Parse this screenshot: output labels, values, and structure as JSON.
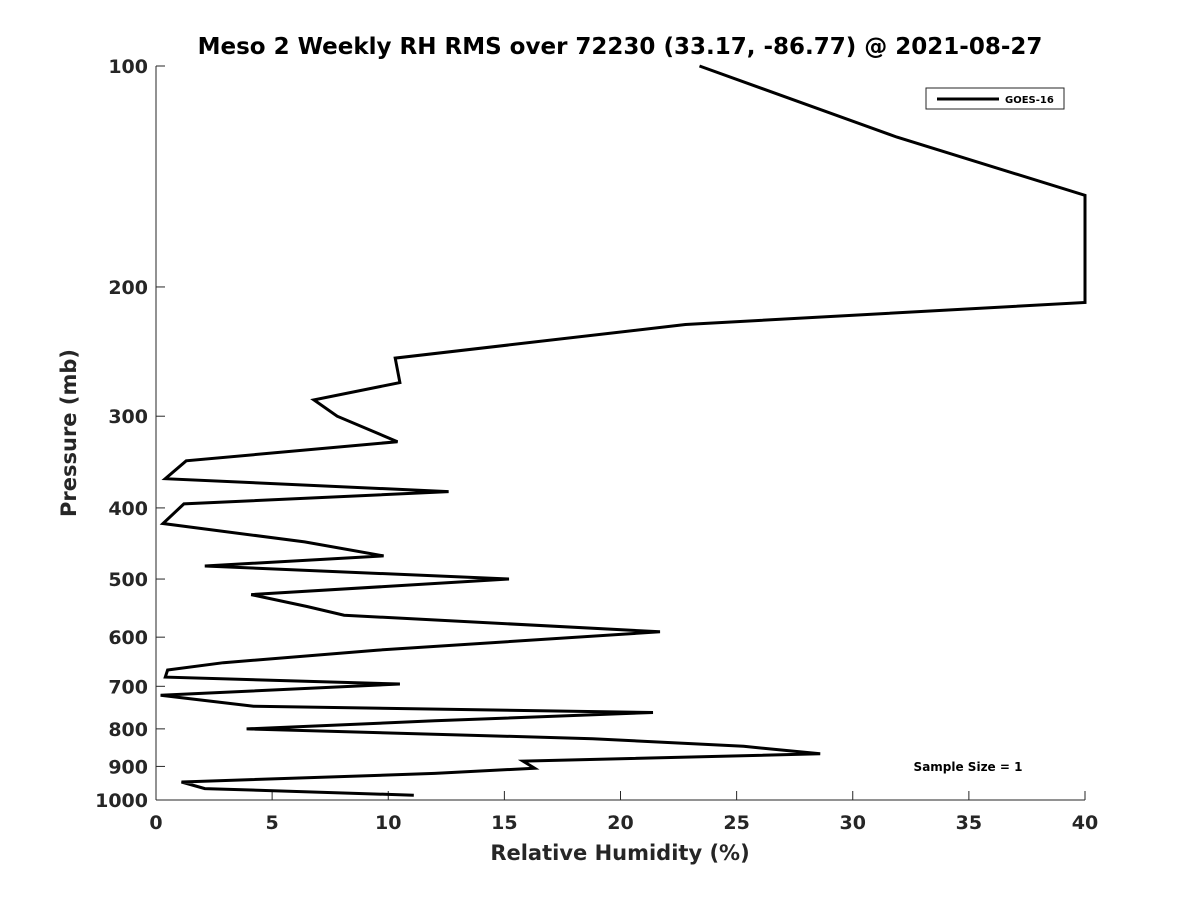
{
  "chart_data": {
    "type": "line",
    "title": "Meso 2 Weekly RH RMS over 72230 (33.17, -86.77) @ 2021-08-27",
    "xlabel": "Relative Humidity (%)",
    "ylabel": "Pressure (mb)",
    "xlim": [
      0,
      40
    ],
    "ylim": [
      100,
      1000
    ],
    "yscale": "log",
    "y_reversed": true,
    "xticks": [
      "0",
      "5",
      "10",
      "15",
      "20",
      "25",
      "30",
      "35",
      "40"
    ],
    "yticks": [
      "100",
      "200",
      "300",
      "400",
      "500",
      "600",
      "700",
      "800",
      "900",
      "1000"
    ],
    "grid": false,
    "legend": {
      "position": "top-right",
      "entries": [
        "GOES-16"
      ]
    },
    "annotation": "Sample Size = 1",
    "series": [
      {
        "name": "GOES-16",
        "color": "#000000",
        "points": [
          [
            23.4,
            100
          ],
          [
            31.9,
            125
          ],
          [
            40,
            150
          ],
          [
            40,
            210
          ],
          [
            22.8,
            225
          ],
          [
            10.3,
            250
          ],
          [
            10.5,
            270
          ],
          [
            6.8,
            285
          ],
          [
            7.8,
            300
          ],
          [
            10.4,
            325
          ],
          [
            1.3,
            345
          ],
          [
            0.4,
            365
          ],
          [
            12.6,
            380
          ],
          [
            1.2,
            395
          ],
          [
            0.3,
            420
          ],
          [
            6.4,
            445
          ],
          [
            9.8,
            465
          ],
          [
            2.1,
            480
          ],
          [
            15.2,
            500
          ],
          [
            4.1,
            525
          ],
          [
            6.5,
            545
          ],
          [
            8.1,
            560
          ],
          [
            21.7,
            590
          ],
          [
            9.5,
            625
          ],
          [
            2.9,
            650
          ],
          [
            0.5,
            665
          ],
          [
            0.4,
            680
          ],
          [
            10.5,
            695
          ],
          [
            0.2,
            720
          ],
          [
            4.2,
            745
          ],
          [
            21.4,
            760
          ],
          [
            12,
            780
          ],
          [
            3.9,
            800
          ],
          [
            18.8,
            825
          ],
          [
            25.3,
            845
          ],
          [
            28.6,
            865
          ],
          [
            15.8,
            885
          ],
          [
            16.3,
            905
          ],
          [
            12,
            920
          ],
          [
            1.1,
            945
          ],
          [
            2.1,
            965
          ],
          [
            11.1,
            985
          ]
        ]
      }
    ]
  }
}
